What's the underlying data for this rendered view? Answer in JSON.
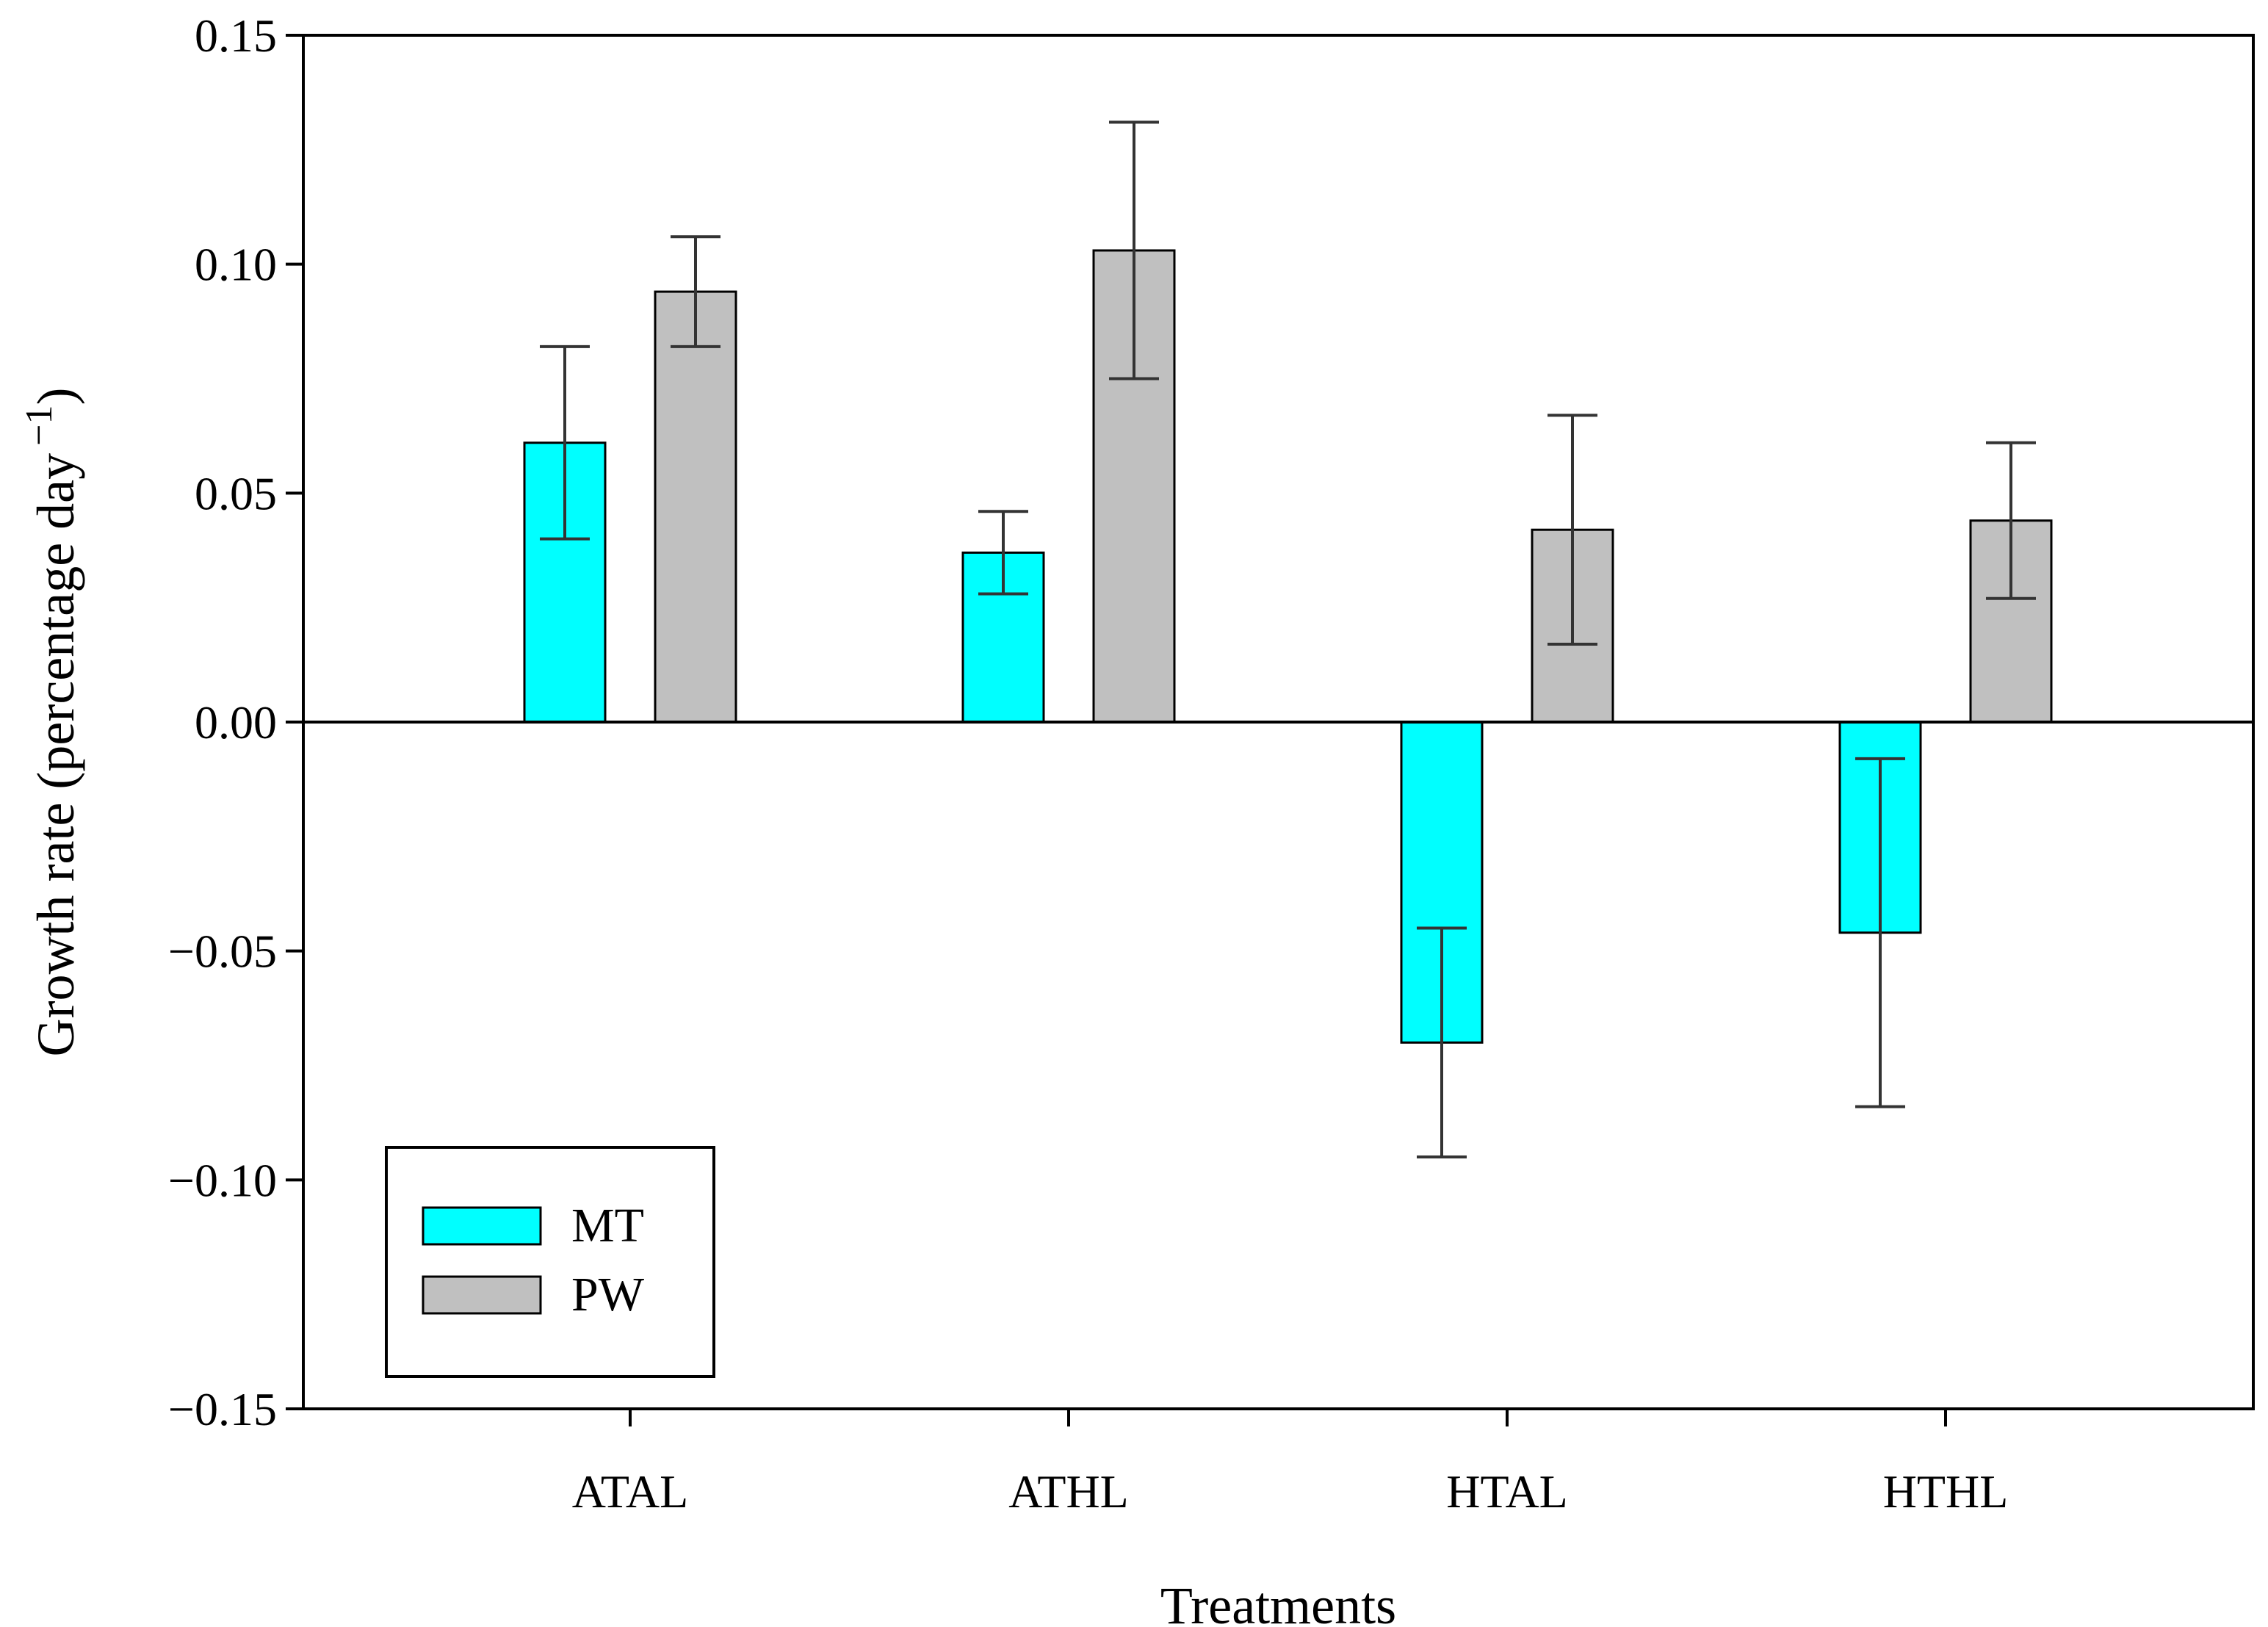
{
  "chart_data": {
    "type": "bar",
    "title": "",
    "xlabel": "Treatments",
    "ylabel": "Growth rate (percentage day",
    "ylabel_superscript": "−1",
    "ylabel_close": ")",
    "categories": [
      "ATAL",
      "ATHL",
      "HTAL",
      "HTHL"
    ],
    "ylim": [
      -0.15,
      0.15
    ],
    "yticks": [
      -0.15,
      -0.1,
      -0.05,
      0.0,
      0.05,
      0.1,
      0.15
    ],
    "ytick_labels": [
      "−0.15",
      "−0.10",
      "−0.05",
      "0.00",
      "0.05",
      "0.10",
      "0.15"
    ],
    "grid": false,
    "legend_position": "bottom-left",
    "series": [
      {
        "name": "MT",
        "color": "#00FFFF",
        "values": [
          0.061,
          0.037,
          -0.07,
          -0.046
        ],
        "errors": [
          0.021,
          0.009,
          0.025,
          0.038
        ]
      },
      {
        "name": "PW",
        "color": "#C0C0C0",
        "values": [
          0.094,
          0.103,
          0.042,
          0.044
        ],
        "errors": [
          0.012,
          0.028,
          0.025,
          0.017
        ]
      }
    ]
  }
}
